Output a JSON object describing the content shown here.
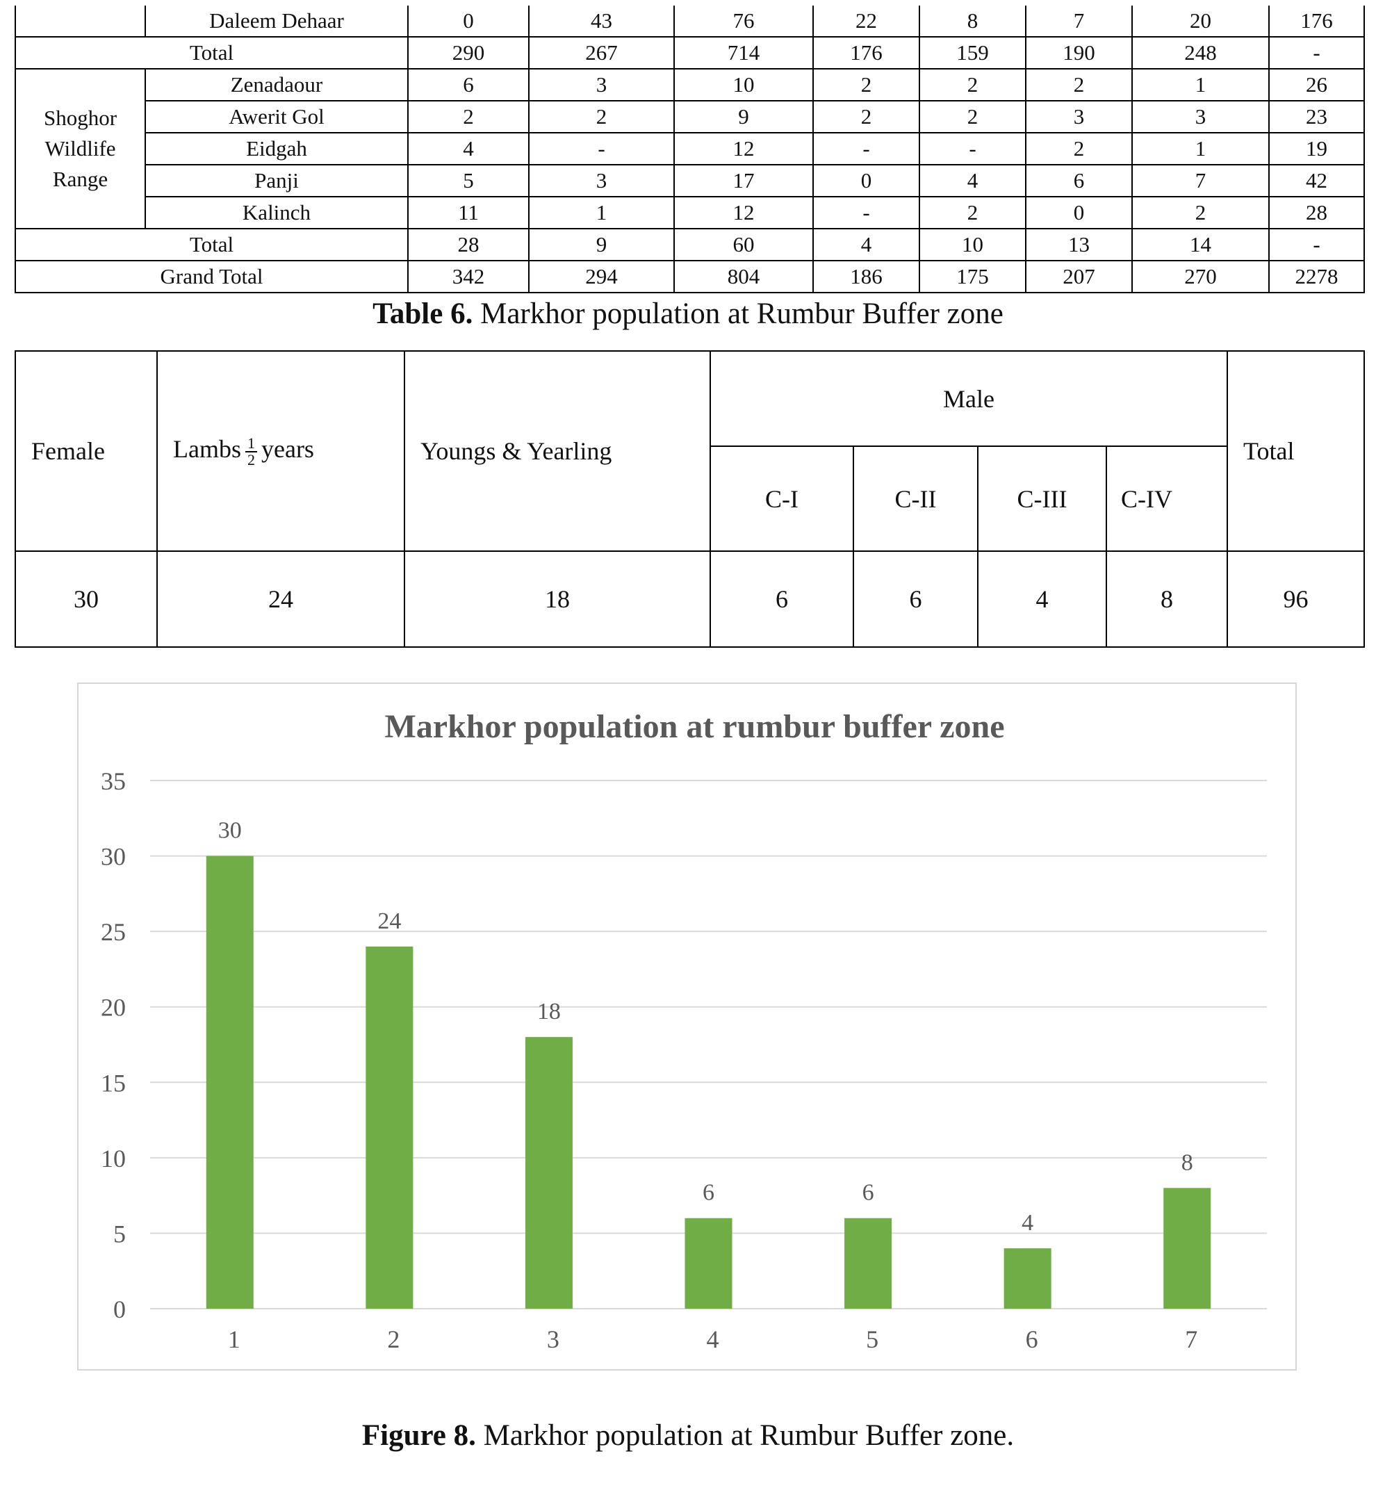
{
  "table5_fragment": {
    "rows": [
      {
        "kind": "site",
        "site": "Daleem Dehaar",
        "values": [
          "0",
          "43",
          "76",
          "22",
          "8",
          "7",
          "20",
          "176"
        ]
      },
      {
        "kind": "total",
        "label": "Total",
        "values": [
          "290",
          "267",
          "714",
          "176",
          "159",
          "190",
          "248",
          "-"
        ]
      },
      {
        "kind": "range",
        "range": "Shoghor Wildlife Range",
        "range_lines": [
          "Shoghor",
          "Wildlife",
          "Range"
        ],
        "sites": [
          {
            "site": "Zenadaour",
            "values": [
              "6",
              "3",
              "10",
              "2",
              "2",
              "2",
              "1",
              "26"
            ]
          },
          {
            "site": "Awerit Gol",
            "values": [
              "2",
              "2",
              "9",
              "2",
              "2",
              "3",
              "3",
              "23"
            ]
          },
          {
            "site": "Eidgah",
            "values": [
              "4",
              "-",
              "12",
              "-",
              "-",
              "2",
              "1",
              "19"
            ]
          },
          {
            "site": "Panji",
            "values": [
              "5",
              "3",
              "17",
              "0",
              "4",
              "6",
              "7",
              "42"
            ]
          },
          {
            "site": "Kalinch",
            "values": [
              "11",
              "1",
              "12",
              "-",
              "2",
              "0",
              "2",
              "28"
            ]
          }
        ]
      },
      {
        "kind": "total",
        "label": "Total",
        "values": [
          "28",
          "9",
          "60",
          "4",
          "10",
          "13",
          "14",
          "-"
        ]
      },
      {
        "kind": "total",
        "label": "Grand Total",
        "values": [
          "342",
          "294",
          "804",
          "186",
          "175",
          "207",
          "270",
          "2278"
        ]
      }
    ]
  },
  "table6": {
    "caption_label": "Table 6.",
    "caption_text": " Markhor population at Rumbur Buffer zone",
    "headers": {
      "female": "Female",
      "lambs_prefix": "Lambs",
      "lambs_frac_num": "1",
      "lambs_frac_den": "2",
      "lambs_suffix": "years",
      "youngs": "Youngs & Yearling",
      "male": "Male",
      "male_classes": [
        "C-I",
        "C-II",
        "C-III",
        "C-IV"
      ],
      "total": "Total"
    },
    "row": [
      "30",
      "24",
      "18",
      "6",
      "6",
      "4",
      "8",
      "96"
    ]
  },
  "figure8": {
    "caption_label": "Figure 8.",
    "caption_text": " Markhor population at Rumbur Buffer zone."
  },
  "chart_data": {
    "type": "bar",
    "title": "Markhor population at  rumbur buffer zone",
    "xlabel": "",
    "ylabel": "",
    "categories": [
      "1",
      "2",
      "3",
      "4",
      "5",
      "6",
      "7"
    ],
    "values": [
      30,
      24,
      18,
      6,
      6,
      4,
      8
    ],
    "data_labels": [
      "30",
      "24",
      "18",
      "6",
      "6",
      "4",
      "8"
    ],
    "yticks": [
      "0",
      "5",
      "10",
      "15",
      "20",
      "25",
      "30",
      "35"
    ],
    "ylim": [
      0,
      35
    ],
    "grid": true,
    "legend": "none",
    "bar_color": "#70ad47",
    "grid_color": "#d9d9d9",
    "text_color": "#595959"
  }
}
